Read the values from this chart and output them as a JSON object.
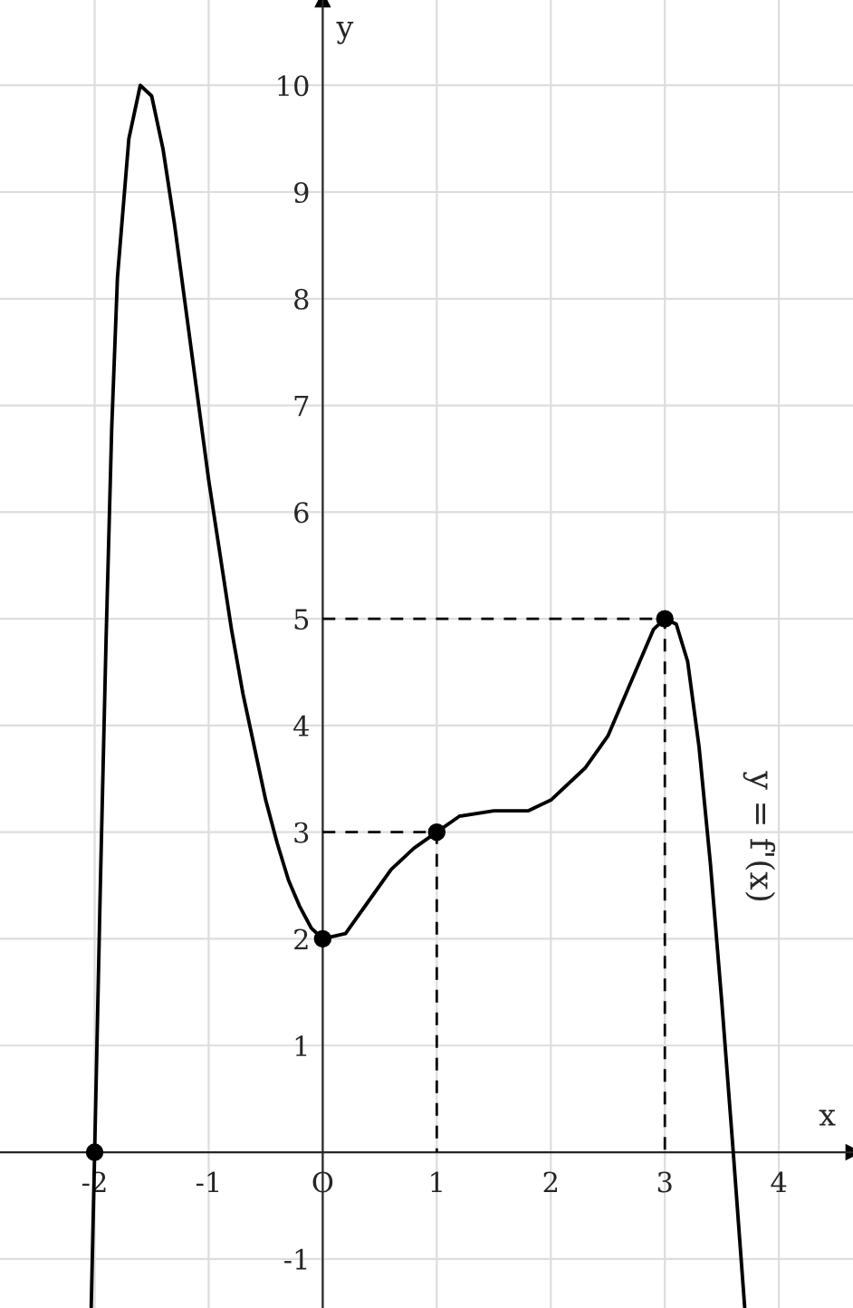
{
  "chart_data": {
    "type": "line",
    "xlabel": "x",
    "ylabel": "y",
    "xlim": [
      -2.83,
      4.65
    ],
    "ylim": [
      -1.46,
      10.8
    ],
    "xticks": [
      -2,
      -1,
      {
        "value": 0,
        "label": "O"
      },
      1,
      2,
      3,
      4
    ],
    "yticks": [
      -1,
      1,
      2,
      3,
      4,
      5,
      6,
      7,
      8,
      9,
      10
    ],
    "grid": true,
    "legend": false,
    "series": [
      {
        "color": "#000000",
        "line_style": "solid",
        "x": [
          -2.03,
          -2,
          -1.95,
          -1.9,
          -1.85,
          -1.8,
          -1.7,
          -1.6,
          -1.5,
          -1.4,
          -1.3,
          -1.2,
          -1.1,
          -1,
          -0.9,
          -0.8,
          -0.7,
          -0.6,
          -0.5,
          -0.4,
          -0.3,
          -0.2,
          -0.1,
          0,
          0.2,
          0.4,
          0.6,
          0.8,
          1,
          1.2,
          1.5,
          1.8,
          2,
          2.3,
          2.5,
          2.7,
          2.9,
          3,
          3.1,
          3.2,
          3.3,
          3.4,
          3.5,
          3.6,
          3.7
        ],
        "values": [
          -1.45,
          0,
          2.5,
          4.8,
          6.8,
          8.2,
          9.5,
          10,
          9.9,
          9.4,
          8.7,
          7.9,
          7.1,
          6.3,
          5.6,
          4.9,
          4.3,
          3.8,
          3.3,
          2.9,
          2.55,
          2.3,
          2.1,
          2,
          2.05,
          2.35,
          2.65,
          2.85,
          3,
          3.15,
          3.2,
          3.2,
          3.3,
          3.6,
          3.9,
          4.4,
          4.9,
          5,
          4.95,
          4.6,
          3.8,
          2.7,
          1.4,
          0,
          -1.45
        ]
      },
      {
        "type": "line",
        "color": "#000000",
        "line_style": "dashed",
        "x": [
          0,
          1,
          1
        ],
        "values": [
          3,
          3,
          0
        ]
      },
      {
        "type": "line",
        "color": "#000000",
        "line_style": "dashed",
        "x": [
          0,
          3,
          3
        ],
        "values": [
          5,
          5,
          0
        ]
      },
      {
        "type": "scatter",
        "color": "#000000",
        "marker": "circle",
        "x": [
          -2,
          0,
          1,
          3
        ],
        "values": [
          0,
          2,
          3,
          5
        ]
      }
    ],
    "annotations": [
      "y = f'(x)"
    ]
  }
}
